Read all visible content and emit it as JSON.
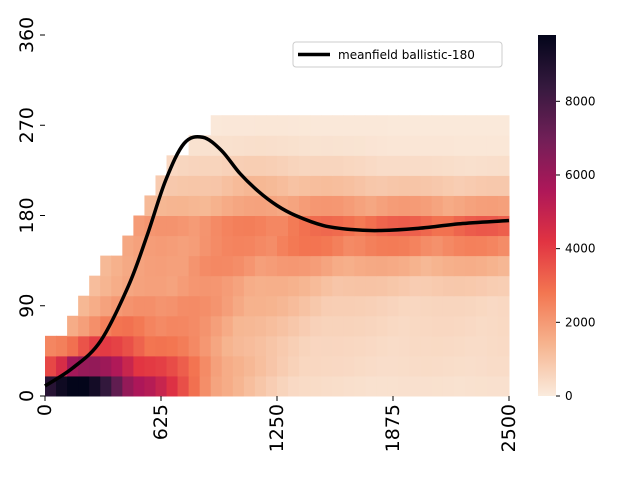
{
  "chart_data": {
    "type": "heatmap",
    "title": "",
    "xlabel": "",
    "ylabel": "",
    "x_range": [
      0,
      2500
    ],
    "y_range": [
      0,
      360
    ],
    "x_ticks": [
      "0",
      "625",
      "1250",
      "1875",
      "2500"
    ],
    "y_ticks": [
      "0",
      "90",
      "180",
      "270",
      "360"
    ],
    "bin_counts": {
      "x": 42,
      "y": 18
    },
    "colorbar": {
      "range": [
        0,
        9800
      ],
      "ticks": [
        "0",
        "2000",
        "4000",
        "6000",
        "8000"
      ],
      "colormap": "rocket_r",
      "colors": [
        "#faebdd",
        "#f6b48f",
        "#f37651",
        "#e13342",
        "#ad1759",
        "#701f57",
        "#35193e",
        "#03051a"
      ]
    },
    "heatmap_bands": [
      {
        "y_bin": [
          0,
          20
        ],
        "x_start": 0,
        "x_end": 2500,
        "peak_at": 0,
        "peak": 9800,
        "tail": 250
      },
      {
        "y_bin": [
          20,
          40
        ],
        "x_start": 0,
        "x_end": 2500,
        "peak_at": 150,
        "peak": 5800,
        "tail": 350
      },
      {
        "y_bin": [
          40,
          60
        ],
        "x_start": 0,
        "x_end": 2500,
        "peak_at": 250,
        "peak": 3700,
        "tail": 400
      },
      {
        "y_bin": [
          60,
          80
        ],
        "x_start": 120,
        "x_end": 2500,
        "peak_at": 420,
        "peak": 2700,
        "tail": 450
      },
      {
        "y_bin": [
          80,
          100
        ],
        "x_start": 180,
        "x_end": 2500,
        "peak_at": 600,
        "peak": 2300,
        "tail": 500
      },
      {
        "y_bin": [
          100,
          120
        ],
        "x_start": 240,
        "x_end": 2500,
        "peak_at": 700,
        "peak": 2000,
        "tail": 800
      },
      {
        "y_bin": [
          120,
          140
        ],
        "x_start": 320,
        "x_end": 2500,
        "peak_at": 850,
        "peak": 2200,
        "tail": 1400
      },
      {
        "y_bin": [
          140,
          160
        ],
        "x_start": 400,
        "x_end": 2500,
        "peak_at": 1300,
        "peak": 2600,
        "tail": 2300
      },
      {
        "y_bin": [
          160,
          180
        ],
        "x_start": 450,
        "x_end": 2500,
        "peak_at": 1700,
        "peak": 3000,
        "tail": 3200
      },
      {
        "y_bin": [
          180,
          200
        ],
        "x_start": 550,
        "x_end": 2500,
        "peak_at": 1400,
        "peak": 1900,
        "tail": 1700
      },
      {
        "y_bin": [
          200,
          220
        ],
        "x_start": 600,
        "x_end": 2500,
        "peak_at": 1100,
        "peak": 1200,
        "tail": 800
      },
      {
        "y_bin": [
          220,
          240
        ],
        "x_start": 650,
        "x_end": 2500,
        "peak_at": 1000,
        "peak": 700,
        "tail": 300
      },
      {
        "y_bin": [
          240,
          260
        ],
        "x_start": 750,
        "x_end": 2500,
        "peak_at": 1000,
        "peak": 300,
        "tail": 100
      },
      {
        "y_bin": [
          260,
          280
        ],
        "x_start": 900,
        "x_end": 2500,
        "peak_at": 1000,
        "peak": 100,
        "tail": 50
      }
    ],
    "series": [
      {
        "name": "meanfield ballistic-180",
        "color": "#000000",
        "x": [
          0,
          150,
          300,
          450,
          550,
          650,
          750,
          850,
          950,
          1050,
          1150,
          1250,
          1350,
          1500,
          1650,
          1800,
          2000,
          2250,
          2500
        ],
        "y": [
          10,
          28,
          55,
          110,
          160,
          215,
          252,
          258,
          245,
          222,
          204,
          190,
          180,
          170,
          166,
          165,
          167,
          172,
          175
        ]
      }
    ],
    "legend": {
      "position": "upper-right"
    }
  }
}
